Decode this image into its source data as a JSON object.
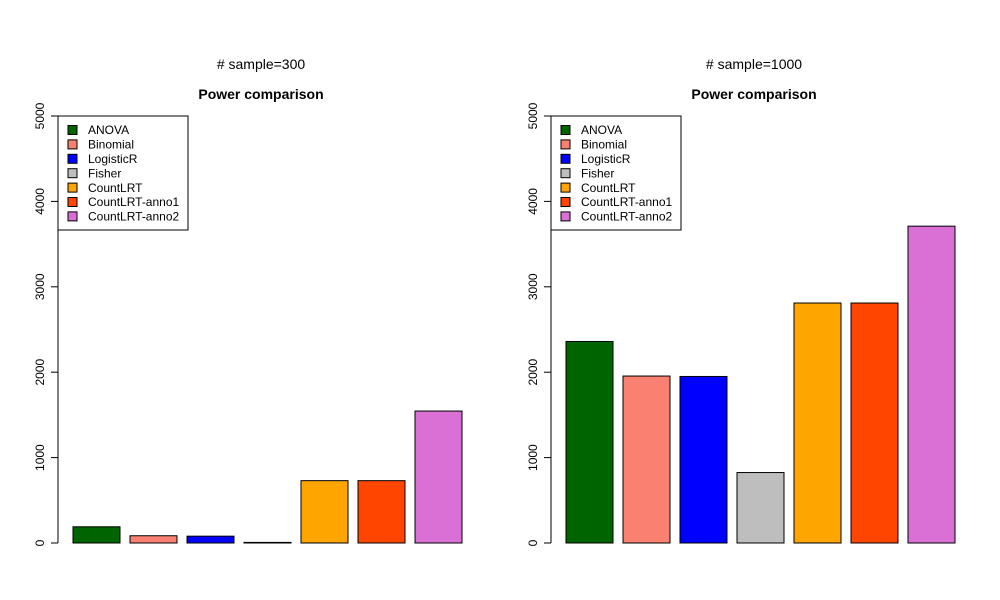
{
  "chart_data": [
    {
      "type": "bar",
      "subtitle": "# sample=300",
      "title": "Power comparison",
      "xlabel": "",
      "ylabel": "",
      "ylim": [
        0,
        5000
      ],
      "yticks": [
        0,
        1000,
        2000,
        3000,
        4000,
        5000
      ],
      "grid": false,
      "legend_position": "top-left",
      "categories": [
        "ANOVA",
        "Binomial",
        "LogisticR",
        "Fisher",
        "CountLRT",
        "CountLRT-anno1",
        "CountLRT-anno2"
      ],
      "values": [
        190,
        85,
        80,
        5,
        730,
        730,
        1545
      ],
      "colors": [
        "#006400",
        "#fa8072",
        "#0000ff",
        "#bebebe",
        "#ffa500",
        "#ff4500",
        "#da70d6"
      ]
    },
    {
      "type": "bar",
      "subtitle": "# sample=1000",
      "title": "Power comparison",
      "xlabel": "",
      "ylabel": "",
      "ylim": [
        0,
        5000
      ],
      "yticks": [
        0,
        1000,
        2000,
        3000,
        4000,
        5000
      ],
      "grid": false,
      "legend_position": "top-left",
      "categories": [
        "ANOVA",
        "Binomial",
        "LogisticR",
        "Fisher",
        "CountLRT",
        "CountLRT-anno1",
        "CountLRT-anno2"
      ],
      "values": [
        2360,
        1955,
        1950,
        825,
        2810,
        2810,
        3710
      ],
      "colors": [
        "#006400",
        "#fa8072",
        "#0000ff",
        "#bebebe",
        "#ffa500",
        "#ff4500",
        "#da70d6"
      ]
    }
  ]
}
